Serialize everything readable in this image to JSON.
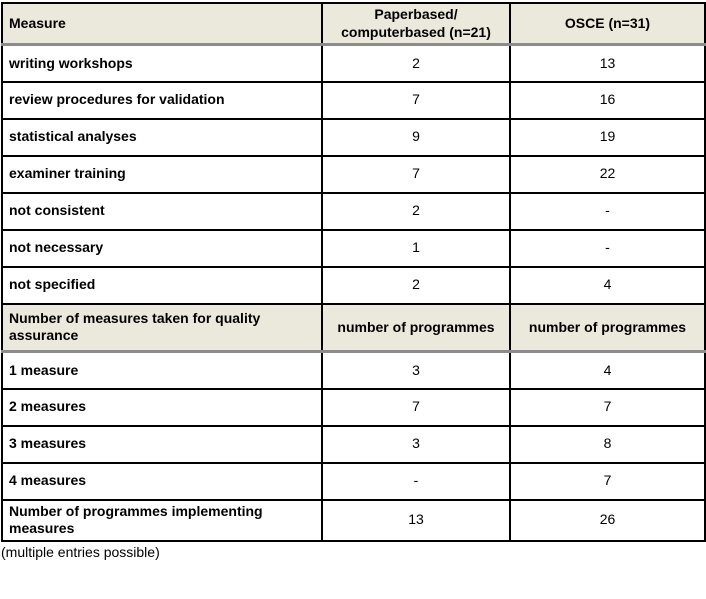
{
  "colors": {
    "header_bg": "#ebe8dc",
    "grid_border": "#000000",
    "header_underline": "#8c8c8c",
    "text": "#000000",
    "page_bg": "#ffffff"
  },
  "table": {
    "header": {
      "measure": "Measure",
      "paper": "Paperbased/\ncomputerbased (n=21)",
      "osce": "OSCE (n=31)"
    },
    "measures_rows": [
      {
        "label": "writing workshops",
        "paper": "2",
        "osce": "13"
      },
      {
        "label": "review procedures for validation",
        "paper": "7",
        "osce": "16"
      },
      {
        "label": "statistical analyses",
        "paper": "9",
        "osce": "19"
      },
      {
        "label": "examiner training",
        "paper": "7",
        "osce": "22"
      },
      {
        "label": "not consistent",
        "paper": "2",
        "osce": "-"
      },
      {
        "label": "not necessary",
        "paper": "1",
        "osce": "-"
      },
      {
        "label": "not specified",
        "paper": "2",
        "osce": "4"
      }
    ],
    "quality_header": {
      "label": "Number of measures taken for quality assurance",
      "paper": "number of programmes",
      "osce": "number of programmes"
    },
    "quality_rows": [
      {
        "label": "1 measure",
        "paper": "3",
        "osce": "4"
      },
      {
        "label": "2 measures",
        "paper": "7",
        "osce": "7"
      },
      {
        "label": "3 measures",
        "paper": "3",
        "osce": "8"
      },
      {
        "label": "4 measures",
        "paper": "-",
        "osce": "7"
      }
    ],
    "total_row": {
      "label": "Number of programmes implementing measures",
      "paper": "13",
      "osce": "26"
    }
  },
  "footnote": "(multiple entries possible)",
  "chart_data": {
    "type": "table",
    "title": "",
    "columns": [
      "Measure",
      "Paperbased/computerbased (n=21)",
      "OSCE (n=31)"
    ],
    "rows": [
      [
        "writing workshops",
        "2",
        "13"
      ],
      [
        "review procedures for validation",
        "7",
        "16"
      ],
      [
        "statistical analyses",
        "9",
        "19"
      ],
      [
        "examiner training",
        "7",
        "22"
      ],
      [
        "not consistent",
        "2",
        "-"
      ],
      [
        "not necessary",
        "1",
        "-"
      ],
      [
        "not specified",
        "2",
        "4"
      ],
      [
        "Number of measures taken for quality assurance",
        "number of programmes",
        "number of programmes"
      ],
      [
        "1 measure",
        "3",
        "4"
      ],
      [
        "2 measures",
        "7",
        "7"
      ],
      [
        "3 measures",
        "3",
        "8"
      ],
      [
        "4 measures",
        "-",
        "7"
      ],
      [
        "Number of programmes implementing measures",
        "13",
        "26"
      ]
    ]
  }
}
